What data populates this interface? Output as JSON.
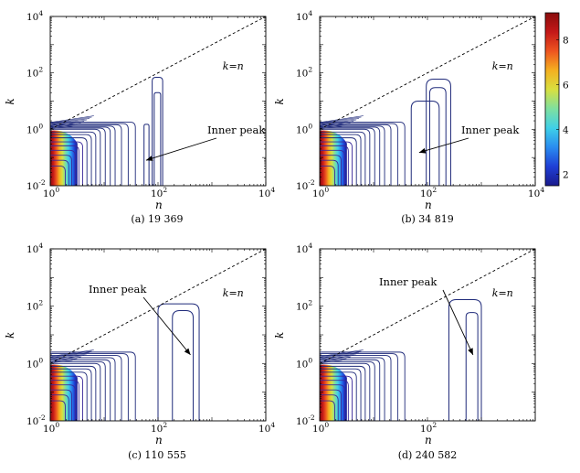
{
  "figure": {
    "colorbar": {
      "ticks": [
        2,
        4,
        6,
        8
      ],
      "range": [
        1.5,
        9.2
      ],
      "colormap": [
        "#1a1a8c",
        "#1f3fd6",
        "#2a8cf0",
        "#3fd0e8",
        "#7ee0a0",
        "#d8e040",
        "#f4b020",
        "#ee5520",
        "#c41818",
        "#8a0c0c"
      ]
    }
  },
  "chart_data": [
    {
      "type": "contour",
      "caption": "(a) 19 369",
      "xlabel": "n",
      "ylabel": "k",
      "xscale": "log",
      "yscale": "log",
      "xlim": [
        1,
        10000
      ],
      "ylim": [
        0.01,
        10000
      ],
      "x_ticks": [
        {
          "base": "10",
          "exp": "0"
        },
        {
          "base": "10",
          "exp": "2"
        },
        {
          "base": "10",
          "exp": "4"
        }
      ],
      "y_ticks": [
        {
          "base": "10",
          "exp": "-2"
        },
        {
          "base": "10",
          "exp": "0"
        },
        {
          "base": "10",
          "exp": "2"
        },
        {
          "base": "10",
          "exp": "4"
        }
      ],
      "reference_line": {
        "label": "k=n",
        "x": [
          1,
          10000
        ],
        "y": [
          1,
          10000
        ]
      },
      "annotation": {
        "text": "Inner peak",
        "arrow_to": [
          60,
          0.08
        ]
      },
      "inner_peak_contours": [
        {
          "x_left": 55,
          "x_right": 68,
          "y_top": 1.5
        },
        {
          "x_left": 85,
          "x_right": 112,
          "y_top": 20
        },
        {
          "x_left": 78,
          "x_right": 122,
          "y_top": 70
        }
      ],
      "main_contours_x_right": [
        1.9,
        2.2,
        2.5,
        2.9,
        3.4,
        4.0,
        4.8,
        5.8,
        7.0,
        8.5,
        10.5,
        13,
        16,
        21,
        28,
        38
      ],
      "main_contours_y_top": [
        0.05,
        0.08,
        0.12,
        0.18,
        0.26,
        0.36,
        0.5,
        0.65,
        0.8,
        1.0,
        1.1,
        1.2,
        1.3,
        1.45,
        1.6,
        1.8
      ]
    },
    {
      "type": "contour",
      "caption": "(b) 34 819",
      "xlabel": "n",
      "ylabel": "k",
      "xscale": "log",
      "yscale": "log",
      "xlim": [
        1,
        10000
      ],
      "ylim": [
        0.01,
        10000
      ],
      "x_ticks": [
        {
          "base": "10",
          "exp": "0"
        },
        {
          "base": "10",
          "exp": "2"
        },
        {
          "base": "10",
          "exp": "4"
        }
      ],
      "y_ticks": [
        {
          "base": "10",
          "exp": "-2"
        },
        {
          "base": "10",
          "exp": "0"
        },
        {
          "base": "10",
          "exp": "2"
        },
        {
          "base": "10",
          "exp": "4"
        }
      ],
      "reference_line": {
        "label": "k=n",
        "x": [
          1,
          10000
        ],
        "y": [
          1,
          10000
        ]
      },
      "annotation": {
        "text": "Inner peak",
        "arrow_to": [
          70,
          0.15
        ]
      },
      "inner_peak_contours": [
        {
          "x_left": 50,
          "x_right": 165,
          "y_top": 10
        },
        {
          "x_left": 110,
          "x_right": 220,
          "y_top": 30
        },
        {
          "x_left": 95,
          "x_right": 270,
          "y_top": 60
        }
      ],
      "main_contours_x_right": [
        1.9,
        2.2,
        2.5,
        2.9,
        3.4,
        4.0,
        4.8,
        5.8,
        7.0,
        8.5,
        10.5,
        13,
        16,
        21,
        28,
        38
      ],
      "main_contours_y_top": [
        0.05,
        0.08,
        0.12,
        0.18,
        0.26,
        0.36,
        0.5,
        0.65,
        0.8,
        1.0,
        1.1,
        1.2,
        1.3,
        1.45,
        1.6,
        1.8
      ]
    },
    {
      "type": "contour",
      "caption": "(c) 110 555",
      "xlabel": "n",
      "ylabel": "k",
      "xscale": "log",
      "yscale": "log",
      "xlim": [
        1,
        10000
      ],
      "ylim": [
        0.01,
        10000
      ],
      "x_ticks": [
        {
          "base": "10",
          "exp": "0"
        },
        {
          "base": "10",
          "exp": "2"
        },
        {
          "base": "10",
          "exp": "4"
        }
      ],
      "y_ticks": [
        {
          "base": "10",
          "exp": "-2"
        },
        {
          "base": "10",
          "exp": "0"
        },
        {
          "base": "10",
          "exp": "2"
        },
        {
          "base": "10",
          "exp": "4"
        }
      ],
      "reference_line": {
        "label": "k=n",
        "x": [
          1,
          10000
        ],
        "y": [
          1,
          10000
        ]
      },
      "annotation": {
        "text": "Inner peak",
        "arrow_to": [
          400,
          2
        ]
      },
      "inner_peak_contours": [
        {
          "x_left": 100,
          "x_right": 580,
          "y_top": 120
        },
        {
          "x_left": 185,
          "x_right": 450,
          "y_top": 70
        }
      ],
      "main_contours_x_right": [
        1.9,
        2.2,
        2.5,
        2.9,
        3.4,
        4.0,
        4.8,
        5.8,
        7.0,
        8.5,
        10.5,
        13,
        16,
        21,
        28,
        38
      ],
      "main_contours_y_top": [
        0.05,
        0.08,
        0.12,
        0.18,
        0.26,
        0.36,
        0.5,
        0.65,
        0.8,
        1.0,
        1.15,
        1.35,
        1.6,
        1.9,
        2.2,
        2.5
      ]
    },
    {
      "type": "contour",
      "caption": "(d) 240 582",
      "xlabel": "n",
      "ylabel": "k",
      "xscale": "log",
      "yscale": "log",
      "xlim": [
        1,
        10000
      ],
      "ylim": [
        0.01,
        10000
      ],
      "x_ticks": [
        {
          "base": "10",
          "exp": "0"
        },
        {
          "base": "10",
          "exp": "2"
        }
      ],
      "y_ticks": [
        {
          "base": "10",
          "exp": "-2"
        },
        {
          "base": "10",
          "exp": "0"
        },
        {
          "base": "10",
          "exp": "2"
        },
        {
          "base": "10",
          "exp": "4"
        }
      ],
      "reference_line": {
        "label": "k=n",
        "x": [
          1,
          10000
        ],
        "y": [
          1,
          10000
        ]
      },
      "annotation": {
        "text": "Inner peak",
        "arrow_to": [
          700,
          2
        ]
      },
      "inner_peak_contours": [
        {
          "x_left": 250,
          "x_right": 1000,
          "y_top": 170
        },
        {
          "x_left": 520,
          "x_right": 860,
          "y_top": 60
        }
      ],
      "main_contours_x_right": [
        1.9,
        2.2,
        2.5,
        2.9,
        3.4,
        4.0,
        4.8,
        5.8,
        7.0,
        8.5,
        10.5,
        13,
        16,
        21,
        28,
        38
      ],
      "main_contours_y_top": [
        0.05,
        0.08,
        0.12,
        0.18,
        0.26,
        0.36,
        0.5,
        0.65,
        0.8,
        1.0,
        1.15,
        1.35,
        1.6,
        1.9,
        2.2,
        2.5
      ]
    }
  ]
}
